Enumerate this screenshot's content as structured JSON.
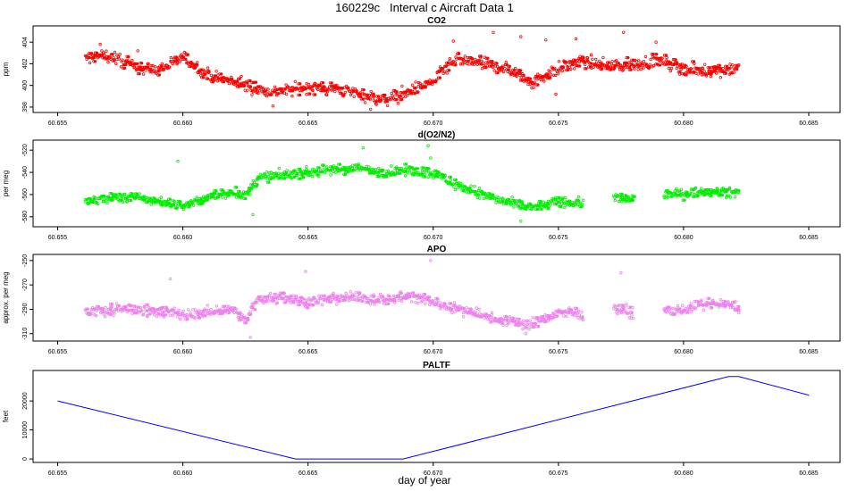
{
  "title": "160229c   Interval c Aircraft Data 1",
  "xlabel": "day of year",
  "x_range": [
    60.655,
    60.685
  ],
  "x_ticks": [
    60.655,
    60.66,
    60.665,
    60.67,
    60.675,
    60.68,
    60.685
  ],
  "x_tick_labels": [
    "60.655",
    "60.660",
    "60.665",
    "60.670",
    "60.675",
    "60.680",
    "60.685"
  ],
  "chart_data": [
    {
      "type": "scatter",
      "title": "CO2",
      "ylabel": "ppm",
      "color": "#ff0000",
      "ylim": [
        397.5,
        405.5
      ],
      "y_ticks": [
        398,
        400,
        402,
        404
      ],
      "y_tick_labels": [
        "398",
        "400",
        "402",
        "404"
      ],
      "x_range_data": [
        60.6561,
        60.6822
      ],
      "trend": [
        [
          60.6561,
          402.5
        ],
        [
          60.657,
          402.8
        ],
        [
          60.658,
          401.8
        ],
        [
          60.659,
          401.4
        ],
        [
          60.66,
          402.6
        ],
        [
          60.661,
          401.0
        ],
        [
          60.662,
          400.3
        ],
        [
          60.6635,
          399.4
        ],
        [
          60.665,
          399.8
        ],
        [
          60.666,
          399.7
        ],
        [
          60.667,
          399.3
        ],
        [
          60.668,
          398.6
        ],
        [
          60.669,
          399.4
        ],
        [
          60.67,
          400.4
        ],
        [
          60.6705,
          401.6
        ],
        [
          60.671,
          402.4
        ],
        [
          60.672,
          402.0
        ],
        [
          60.673,
          401.5
        ],
        [
          60.674,
          400.3
        ],
        [
          60.675,
          401.6
        ],
        [
          60.676,
          402.2
        ],
        [
          60.677,
          401.8
        ],
        [
          60.678,
          401.9
        ],
        [
          60.679,
          402.3
        ],
        [
          60.68,
          401.6
        ],
        [
          60.681,
          401.3
        ],
        [
          60.6822,
          401.7
        ]
      ],
      "spread": 0.9,
      "spikes": [
        [
          60.6567,
          403.8
        ],
        [
          60.6582,
          403.2
        ],
        [
          60.6675,
          397.8
        ],
        [
          60.6708,
          404.1
        ],
        [
          60.6724,
          404.9
        ],
        [
          60.6735,
          404.5
        ],
        [
          60.6745,
          404.2
        ],
        [
          60.6757,
          404.3
        ],
        [
          60.6776,
          404.9
        ],
        [
          60.6789,
          404.0
        ],
        [
          60.6749,
          399.2
        ],
        [
          60.6636,
          398.1
        ]
      ],
      "gaps": []
    },
    {
      "type": "scatter",
      "title": "d(O2/N2)",
      "ylabel": "per meg",
      "color": "#00ee00",
      "ylim": [
        -589,
        -511
      ],
      "y_ticks": [
        -580,
        -560,
        -540,
        -520
      ],
      "y_tick_labels": [
        "-580",
        "-560",
        "-540",
        "-520"
      ],
      "x_range_data": [
        60.6561,
        60.6822
      ],
      "trend": [
        [
          60.6561,
          -567
        ],
        [
          60.657,
          -563
        ],
        [
          60.658,
          -562
        ],
        [
          60.659,
          -566
        ],
        [
          60.66,
          -570
        ],
        [
          60.661,
          -563
        ],
        [
          60.662,
          -557
        ],
        [
          60.6625,
          -562
        ],
        [
          60.663,
          -545
        ],
        [
          60.664,
          -542
        ],
        [
          60.665,
          -540
        ],
        [
          60.666,
          -538
        ],
        [
          60.667,
          -536
        ],
        [
          60.668,
          -540
        ],
        [
          60.669,
          -538
        ],
        [
          60.67,
          -540
        ],
        [
          60.671,
          -552
        ],
        [
          60.672,
          -560
        ],
        [
          60.673,
          -568
        ],
        [
          60.674,
          -572
        ],
        [
          60.675,
          -566
        ],
        [
          60.676,
          -568
        ],
        [
          60.677,
          -562
        ],
        [
          60.678,
          -565
        ],
        [
          60.679,
          -560
        ],
        [
          60.68,
          -559
        ],
        [
          60.681,
          -557
        ],
        [
          60.6822,
          -558
        ]
      ],
      "spread": 7,
      "spikes": [
        [
          60.6598,
          -530
        ],
        [
          60.6672,
          -518
        ],
        [
          60.6698,
          -516
        ],
        [
          60.6628,
          -578
        ],
        [
          60.6735,
          -584
        ],
        [
          60.6699,
          -527
        ]
      ],
      "gaps": [
        [
          60.676,
          60.6772
        ],
        [
          60.678,
          60.6792
        ]
      ]
    },
    {
      "type": "scatter",
      "title": "APO",
      "ylabel": "approx. per meg",
      "color": "#ee82ee",
      "ylim": [
        -316,
        -245
      ],
      "y_ticks": [
        -310,
        -290,
        -270,
        -250
      ],
      "y_tick_labels": [
        "-310",
        "-290",
        "-270",
        "-250"
      ],
      "x_range_data": [
        60.6561,
        60.6822
      ],
      "trend": [
        [
          60.6561,
          -292
        ],
        [
          60.657,
          -291
        ],
        [
          60.658,
          -290
        ],
        [
          60.659,
          -291
        ],
        [
          60.66,
          -295
        ],
        [
          60.661,
          -292
        ],
        [
          60.662,
          -290
        ],
        [
          60.6625,
          -300
        ],
        [
          60.663,
          -281
        ],
        [
          60.664,
          -280
        ],
        [
          60.665,
          -284
        ],
        [
          60.666,
          -281
        ],
        [
          60.667,
          -280
        ],
        [
          60.668,
          -282
        ],
        [
          60.669,
          -279
        ],
        [
          60.67,
          -284
        ],
        [
          60.671,
          -290
        ],
        [
          60.672,
          -295
        ],
        [
          60.673,
          -300
        ],
        [
          60.674,
          -302
        ],
        [
          60.675,
          -292
        ],
        [
          60.676,
          -294
        ],
        [
          60.677,
          -286
        ],
        [
          60.678,
          -294
        ],
        [
          60.679,
          -292
        ],
        [
          60.68,
          -290
        ],
        [
          60.681,
          -285
        ],
        [
          60.6822,
          -288
        ]
      ],
      "spread": 7,
      "spikes": [
        [
          60.6595,
          -265
        ],
        [
          60.6699,
          -250
        ],
        [
          60.6775,
          -260
        ],
        [
          60.6627,
          -313
        ],
        [
          60.6737,
          -310
        ],
        [
          60.6649,
          -259
        ]
      ],
      "gaps": [
        [
          60.676,
          60.6772
        ],
        [
          60.678,
          60.6792
        ]
      ]
    },
    {
      "type": "line",
      "title": "PALTF",
      "ylabel": "feet",
      "color": "#0000ff",
      "ylim": [
        -1200,
        30500
      ],
      "y_ticks": [
        0,
        10000,
        20000
      ],
      "y_tick_labels": [
        "0",
        "10000",
        "20000"
      ],
      "x": [
        60.655,
        60.6645,
        60.6688,
        60.6818,
        60.6822,
        60.685
      ],
      "y": [
        20000,
        0,
        0,
        28400,
        28400,
        22000
      ]
    }
  ]
}
